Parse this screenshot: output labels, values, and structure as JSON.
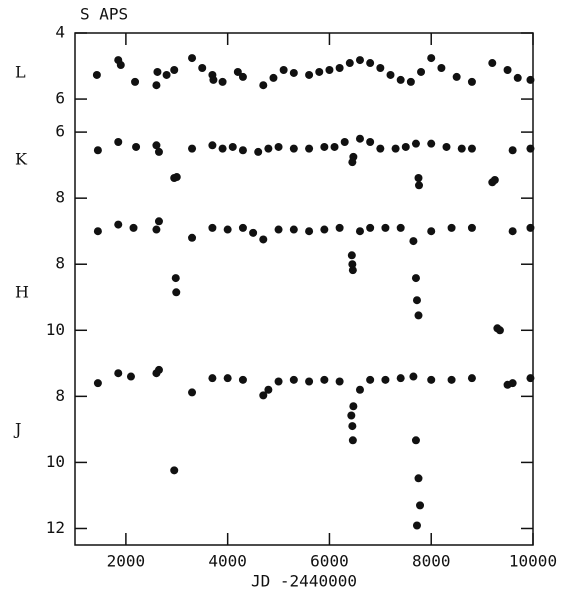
{
  "chart_data": {
    "type": "scatter",
    "title": "S APS",
    "x_label": "JD -2440000",
    "xlim": [
      1000,
      10000
    ],
    "xticks": [
      2000,
      4000,
      6000,
      8000,
      10000
    ],
    "ylim": [
      4,
      19.5
    ],
    "y_inverted": true,
    "yticks": [
      4,
      6,
      {
        "value": 7,
        "label": "6"
      },
      {
        "value": 9,
        "label": "8"
      },
      {
        "value": 11,
        "label": "8"
      },
      {
        "value": 13,
        "label": "10"
      },
      {
        "value": 15,
        "label": "8"
      },
      {
        "value": 17,
        "label": "10"
      },
      {
        "value": 19,
        "label": "12"
      }
    ],
    "series": [
      {
        "name": "L",
        "color": "#111111",
        "x": [
          1430,
          1850,
          1900,
          2180,
          2600,
          2620,
          2800,
          2950,
          3300,
          3500,
          3700,
          3720,
          3900,
          4200,
          4300,
          4700,
          4900,
          5100,
          5300,
          5600,
          5800,
          6000,
          6200,
          6400,
          6600,
          6800,
          7000,
          7200,
          7400,
          7600,
          7800,
          8000,
          8200,
          8500,
          8800,
          9200,
          9500,
          9700,
          9950
        ],
        "values": [
          5.27,
          4.82,
          4.97,
          5.48,
          5.58,
          5.18,
          5.27,
          5.12,
          4.76,
          5.06,
          5.27,
          5.42,
          5.48,
          5.18,
          5.33,
          5.58,
          5.36,
          5.12,
          5.21,
          5.27,
          5.18,
          5.12,
          5.06,
          4.91,
          4.82,
          4.91,
          5.06,
          5.27,
          5.42,
          5.48,
          5.18,
          4.76,
          5.06,
          5.33,
          5.48,
          4.91,
          5.12,
          5.36,
          5.42
        ]
      },
      {
        "name": "K",
        "color": "#111111",
        "x": [
          1450,
          1850,
          2200,
          2600,
          2650,
          2950,
          3000,
          3300,
          3700,
          3900,
          4100,
          4300,
          4600,
          4800,
          5000,
          5300,
          5600,
          5900,
          6100,
          6300,
          6450,
          6470,
          6600,
          6800,
          7000,
          7300,
          7500,
          7700,
          7750,
          7760,
          8000,
          8300,
          8600,
          8800,
          9200,
          9250,
          9600,
          9950
        ],
        "values": [
          7.55,
          7.3,
          7.45,
          7.4,
          7.6,
          8.39,
          8.36,
          7.5,
          7.4,
          7.5,
          7.45,
          7.55,
          7.6,
          7.5,
          7.45,
          7.5,
          7.5,
          7.45,
          7.45,
          7.3,
          7.91,
          7.75,
          7.2,
          7.3,
          7.5,
          7.5,
          7.45,
          7.35,
          8.39,
          8.61,
          7.35,
          7.45,
          7.5,
          7.5,
          8.52,
          8.45,
          7.55,
          7.5
        ]
      },
      {
        "name": "H",
        "color": "#111111",
        "x": [
          1450,
          1850,
          2150,
          2600,
          2650,
          2980,
          2990,
          3300,
          3700,
          4000,
          4300,
          4500,
          4700,
          5000,
          5300,
          5600,
          5900,
          6200,
          6440,
          6450,
          6460,
          6600,
          6800,
          7100,
          7400,
          7650,
          7700,
          7720,
          7750,
          8000,
          8400,
          8800,
          9300,
          9350,
          9600,
          9950
        ],
        "values": [
          10.0,
          9.8,
          9.9,
          9.95,
          9.7,
          11.42,
          11.85,
          10.2,
          9.9,
          9.95,
          9.9,
          10.05,
          10.25,
          9.95,
          9.95,
          10.0,
          9.95,
          9.9,
          10.73,
          11.0,
          11.18,
          10.0,
          9.9,
          9.9,
          9.9,
          10.3,
          11.42,
          12.09,
          12.55,
          10.0,
          9.9,
          9.9,
          12.94,
          13.0,
          10.0,
          9.9
        ]
      },
      {
        "name": "J",
        "color": "#111111",
        "x": [
          1450,
          1850,
          2100,
          2600,
          2650,
          2950,
          3300,
          3700,
          4000,
          4300,
          4700,
          4800,
          5000,
          5300,
          5600,
          5900,
          6200,
          6430,
          6450,
          6460,
          6470,
          6600,
          6800,
          7100,
          7400,
          7650,
          7700,
          7750,
          7780,
          7720,
          8000,
          8400,
          8800,
          9500,
          9600,
          9950
        ],
        "values": [
          14.6,
          14.3,
          14.4,
          14.3,
          14.2,
          17.24,
          14.88,
          14.45,
          14.45,
          14.5,
          14.97,
          14.8,
          14.55,
          14.5,
          14.55,
          14.5,
          14.55,
          15.58,
          15.9,
          16.33,
          15.3,
          14.8,
          14.5,
          14.5,
          14.45,
          14.4,
          16.33,
          17.48,
          18.3,
          18.91,
          14.5,
          14.5,
          14.45,
          14.65,
          14.6,
          14.45
        ]
      }
    ]
  }
}
